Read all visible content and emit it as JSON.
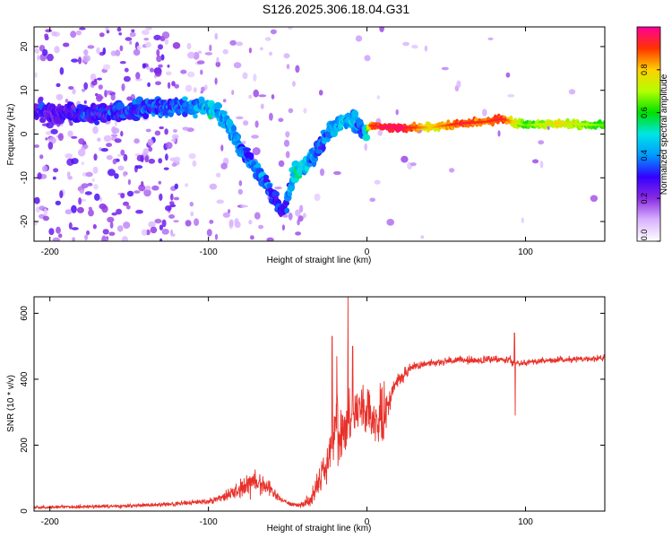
{
  "title": "S126.2025.306.18.04.G31",
  "chart_data": [
    {
      "type": "heatmap",
      "title": "S126.2025.306.18.04.G31",
      "xlabel": "Height of straight line (km)",
      "ylabel": "Frequency (Hz)",
      "xlim": [
        -210,
        150
      ],
      "ylim": [
        -24.5,
        24.5
      ],
      "xticks": [
        -200,
        -100,
        0,
        100
      ],
      "yticks": [
        -20,
        -10,
        0,
        10,
        20
      ],
      "colorbar": {
        "label": "Normalized spectral amplitude",
        "range": [
          0,
          1
        ],
        "ticks": [
          "0.0",
          "0.2",
          "0.4",
          "0.6",
          "0.8"
        ],
        "colors": [
          "#ffffff",
          "#d9b3ff",
          "#8a2be2",
          "#3300ff",
          "#0099ff",
          "#00e5e5",
          "#00e000",
          "#b3ff00",
          "#ffd000",
          "#ff3300",
          "#ff0099"
        ]
      },
      "ridge": {
        "x": [
          -200,
          -180,
          -160,
          -140,
          -120,
          -105,
          -95,
          -88,
          -82,
          -75,
          -68,
          -60,
          -52,
          -46,
          -42,
          -38,
          -30,
          -22,
          -15,
          -8,
          -2,
          2,
          10,
          20,
          40,
          60,
          75,
          85,
          100,
          120,
          150
        ],
        "y": [
          5,
          4.5,
          5,
          6,
          6,
          6.5,
          5.5,
          2,
          -2,
          -5,
          -9,
          -14,
          -18,
          -9,
          -8,
          -7,
          -3,
          1,
          3,
          3,
          0,
          2,
          1.5,
          1.5,
          1.5,
          2.5,
          2.8,
          3.5,
          2,
          2.5,
          2
        ],
        "amp": [
          0.25,
          0.3,
          0.3,
          0.35,
          0.35,
          0.4,
          0.45,
          0.4,
          0.4,
          0.35,
          0.35,
          0.35,
          0.3,
          0.45,
          0.5,
          0.45,
          0.35,
          0.4,
          0.45,
          0.4,
          0.35,
          0.85,
          0.92,
          0.95,
          0.75,
          0.9,
          0.85,
          0.9,
          0.6,
          0.75,
          0.6
        ]
      }
    },
    {
      "type": "line",
      "xlabel": "Height of straight line (km)",
      "ylabel": "SNR (10 * v/v)",
      "xlim": [
        -210,
        150
      ],
      "ylim": [
        0,
        650
      ],
      "xticks": [
        -200,
        -100,
        0,
        100
      ],
      "yticks": [
        0,
        200,
        400,
        600
      ],
      "series": [
        {
          "name": "SNR",
          "color": "#e8312a",
          "x": [
            -210,
            -150,
            -120,
            -100,
            -90,
            -80,
            -75,
            -70,
            -65,
            -60,
            -55,
            -50,
            -45,
            -40,
            -35,
            -30,
            -25,
            -22,
            -20,
            -15,
            -10,
            -5,
            0,
            5,
            10,
            15,
            20,
            25,
            30,
            40,
            50,
            60,
            70,
            80,
            90,
            92,
            95,
            100,
            110,
            120,
            130,
            140,
            150
          ],
          "y": [
            12,
            15,
            22,
            30,
            45,
            65,
            90,
            95,
            80,
            60,
            40,
            25,
            18,
            20,
            40,
            100,
            150,
            200,
            260,
            250,
            290,
            320,
            300,
            260,
            280,
            350,
            400,
            420,
            440,
            450,
            455,
            458,
            456,
            460,
            462,
            450,
            448,
            452,
            455,
            458,
            460,
            462,
            465
          ],
          "noise": [
            4,
            5,
            6,
            8,
            14,
            28,
            40,
            42,
            30,
            18,
            10,
            6,
            5,
            8,
            25,
            45,
            60,
            70,
            80,
            80,
            70,
            65,
            55,
            60,
            80,
            40,
            20,
            15,
            12,
            10,
            10,
            10,
            10,
            10,
            10,
            10,
            10,
            8,
            8,
            8,
            8,
            8,
            8
          ],
          "spikes": [
            {
              "x": -22,
              "y": 530
            },
            {
              "x": -19,
              "y": 470
            },
            {
              "x": -12,
              "y": 650
            },
            {
              "x": -9,
              "y": 500
            },
            {
              "x": 93,
              "y": 540
            },
            {
              "x": 93.5,
              "y": 290
            }
          ]
        }
      ]
    }
  ]
}
